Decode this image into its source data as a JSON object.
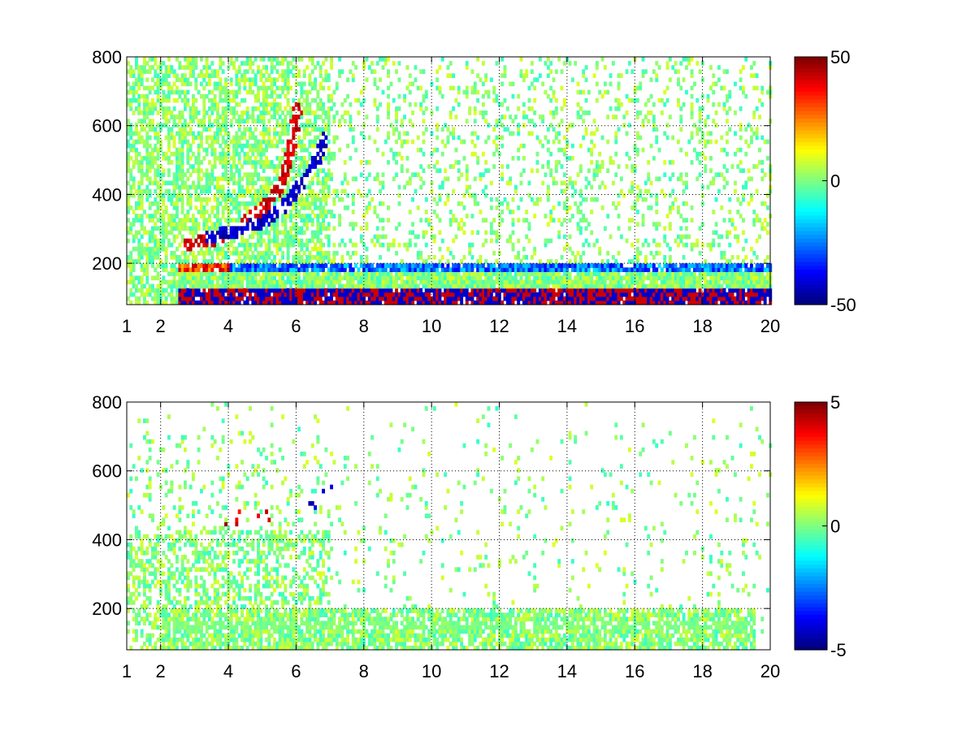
{
  "figure": {
    "background": "#ffffff"
  },
  "colormap": "jet",
  "chart_data": [
    {
      "type": "heatmap",
      "title": "",
      "xlabel": "",
      "ylabel": "",
      "xlim": [
        1,
        20
      ],
      "ylim": [
        80,
        800
      ],
      "x_ticks": [
        "1",
        "2",
        "4",
        "6",
        "8",
        "10",
        "12",
        "14",
        "16",
        "18",
        "20"
      ],
      "x_tick_values": [
        1,
        2,
        4,
        6,
        8,
        10,
        12,
        14,
        16,
        18,
        20
      ],
      "y_ticks": [
        "200",
        "400",
        "600",
        "800"
      ],
      "y_tick_values": [
        200,
        400,
        600,
        800
      ],
      "grid": true,
      "colorbar": {
        "min": -50,
        "max": 50,
        "labels": [
          "50",
          "0",
          "-50"
        ],
        "label_values": [
          50,
          0,
          -50
        ]
      },
      "features": [
        {
          "kind": "arc",
          "sign": "positive",
          "points": [
            [
              2.8,
              250
            ],
            [
              3.5,
              262
            ],
            [
              4.3,
              300
            ],
            [
              5.0,
              355
            ],
            [
              5.5,
              420
            ],
            [
              5.8,
              520
            ],
            [
              6.0,
              640
            ]
          ]
        },
        {
          "kind": "arc",
          "sign": "negative",
          "points": [
            [
              3.4,
              270
            ],
            [
              4.2,
              290
            ],
            [
              5.0,
              315
            ],
            [
              5.6,
              360
            ],
            [
              6.1,
              420
            ],
            [
              6.5,
              480
            ],
            [
              6.8,
              560
            ]
          ]
        },
        {
          "kind": "band",
          "sign": "positive",
          "y": 180,
          "x_range": [
            2.5,
            20
          ]
        },
        {
          "kind": "band",
          "sign": "negative",
          "y": 185,
          "x_range": [
            4.0,
            20
          ]
        },
        {
          "kind": "band",
          "sign": "mixed",
          "y": 110,
          "x_range": [
            2.5,
            20
          ]
        }
      ]
    },
    {
      "type": "heatmap",
      "title": "",
      "xlabel": "",
      "ylabel": "",
      "xlim": [
        1,
        20
      ],
      "ylim": [
        80,
        800
      ],
      "x_ticks": [
        "1",
        "2",
        "4",
        "6",
        "8",
        "10",
        "12",
        "14",
        "16",
        "18",
        "20"
      ],
      "x_tick_values": [
        1,
        2,
        4,
        6,
        8,
        10,
        12,
        14,
        16,
        18,
        20
      ],
      "y_ticks": [
        "200",
        "400",
        "600",
        "800"
      ],
      "y_tick_values": [
        200,
        400,
        600,
        800
      ],
      "grid": true,
      "colorbar": {
        "min": -5,
        "max": 5,
        "labels": [
          "5",
          "0",
          "-5"
        ],
        "label_values": [
          5,
          0,
          -5
        ]
      },
      "features": [
        {
          "kind": "cluster",
          "sign": "positive",
          "x_range": [
            3.5,
            5.2
          ],
          "y": 460
        },
        {
          "kind": "arc",
          "sign": "negative",
          "points": [
            [
              6.5,
              500
            ],
            [
              6.8,
              530
            ],
            [
              7.0,
              560
            ]
          ]
        },
        {
          "kind": "band",
          "sign": "near-zero",
          "y": 150,
          "x_range": [
            2.0,
            19.5
          ]
        }
      ]
    }
  ]
}
